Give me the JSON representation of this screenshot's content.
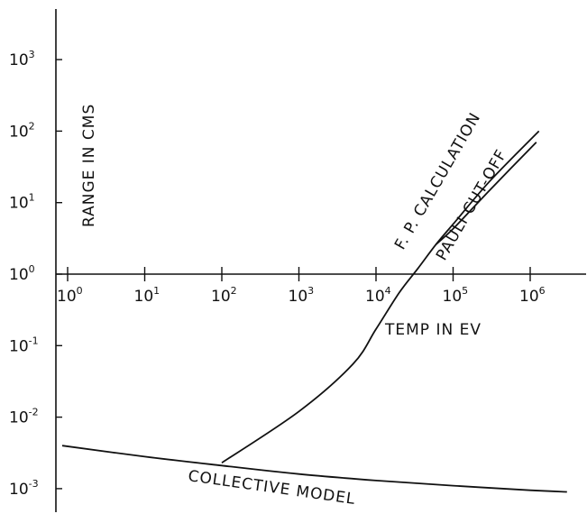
{
  "chart_data": {
    "type": "line",
    "title": "",
    "xlabel": "TEMP IN EV",
    "ylabel": "RANGE IN CMS",
    "x_scale": "log",
    "y_scale": "log",
    "xlim": [
      1,
      10000000
    ],
    "ylim": [
      0.001,
      1000
    ],
    "grid": false,
    "legend": "none",
    "x_ticks": [
      {
        "base": "10",
        "exp": "0",
        "value": 1
      },
      {
        "base": "10",
        "exp": "1",
        "value": 10
      },
      {
        "base": "10",
        "exp": "2",
        "value": 100
      },
      {
        "base": "10",
        "exp": "3",
        "value": 1000
      },
      {
        "base": "10",
        "exp": "4",
        "value": 10000
      },
      {
        "base": "10",
        "exp": "5",
        "value": 100000
      },
      {
        "base": "10",
        "exp": "6",
        "value": 1000000
      }
    ],
    "y_ticks": [
      {
        "base": "10",
        "exp": "3",
        "value": 1000
      },
      {
        "base": "10",
        "exp": "2",
        "value": 100
      },
      {
        "base": "10",
        "exp": "1",
        "value": 10
      },
      {
        "base": "10",
        "exp": "0",
        "value": 1
      },
      {
        "base": "10",
        "exp": "-1",
        "value": 0.1
      },
      {
        "base": "10",
        "exp": "-2",
        "value": 0.01
      },
      {
        "base": "10",
        "exp": "-3",
        "value": 0.001
      }
    ],
    "series": [
      {
        "name": "F.P. CALCULATION",
        "x": [
          100,
          1000,
          5000,
          10000,
          20000,
          35000,
          60000,
          100000,
          300000,
          1300000
        ],
        "y": [
          0.0023,
          0.012,
          0.055,
          0.17,
          0.55,
          1.2,
          2.6,
          5.0,
          20,
          100
        ]
      },
      {
        "name": "PAULI CUT-OFF",
        "x": [
          60000,
          100000,
          300000,
          1200000
        ],
        "y": [
          2.6,
          4.3,
          15,
          70
        ]
      },
      {
        "name": "COLLECTIVE MODEL",
        "x": [
          0.85,
          10,
          100,
          1000,
          10000,
          100000,
          1000000,
          3000000
        ],
        "y": [
          0.004,
          0.0028,
          0.0021,
          0.0016,
          0.0013,
          0.0011,
          0.00095,
          0.0009
        ]
      }
    ],
    "annotations": {
      "fp": "F. P. CALCULATION",
      "pauli": "PAULI  CUT-OFF",
      "collective": "COLLECTIVE  MODEL"
    }
  }
}
